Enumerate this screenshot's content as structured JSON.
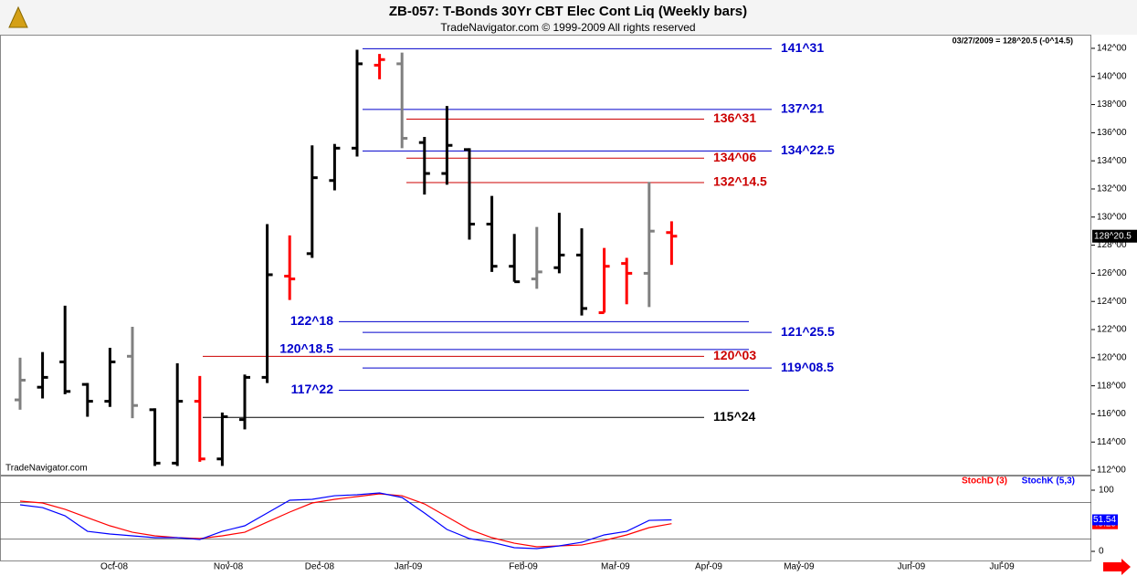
{
  "chart_data": {
    "type": "ohlc",
    "title": "ZB-057:  T-Bonds 30Yr CBT Elec Cont Liq  (Weekly bars)",
    "subtitle": "TradeNavigator.com © 1999-2009 All rights reserved",
    "info": "03/27/2009 = 128^20.5 (-0^14.5)",
    "watermark": "TradeNavigator.com",
    "ylim": [
      111.68,
      142.97
    ],
    "yticks": [
      {
        "value": 142,
        "label": "142^00"
      },
      {
        "value": 140,
        "label": "140^00"
      },
      {
        "value": 138,
        "label": "138^00"
      },
      {
        "value": 136,
        "label": "136^00"
      },
      {
        "value": 134,
        "label": "134^00"
      },
      {
        "value": 132,
        "label": "132^00"
      },
      {
        "value": 130,
        "label": "130^00"
      },
      {
        "value": 128,
        "label": "128^00"
      },
      {
        "value": 126,
        "label": "126^00"
      },
      {
        "value": 124,
        "label": "124^00"
      },
      {
        "value": 122,
        "label": "122^00"
      },
      {
        "value": 120,
        "label": "120^00"
      },
      {
        "value": 118,
        "label": "118^00"
      },
      {
        "value": 116,
        "label": "116^00"
      },
      {
        "value": 114,
        "label": "114^00"
      },
      {
        "value": 112,
        "label": "112^00"
      }
    ],
    "xlim": [
      -0.894,
      47.683
    ],
    "xticks": [
      {
        "value": 4.19,
        "label": "Oct-08"
      },
      {
        "value": 9.27,
        "label": "Nov-08"
      },
      {
        "value": 13.33,
        "label": "Dec-08"
      },
      {
        "value": 17.28,
        "label": "Jan-09"
      },
      {
        "value": 22.4,
        "label": "Feb-09"
      },
      {
        "value": 26.5,
        "label": "Mar-09"
      },
      {
        "value": 30.65,
        "label": "Apr-09"
      },
      {
        "value": 34.67,
        "label": "May-09"
      },
      {
        "value": 39.67,
        "label": "Jun-09"
      },
      {
        "value": 43.7,
        "label": "Jul-09"
      }
    ],
    "bars": [
      {
        "open": 117.0,
        "high": 120.0,
        "low": 116.3,
        "close": 118.4,
        "color": "#808080"
      },
      {
        "open": 117.9,
        "high": 120.4,
        "low": 117.1,
        "close": 118.6,
        "color": "#000000"
      },
      {
        "open": 119.7,
        "high": 123.7,
        "low": 117.4,
        "close": 117.6,
        "color": "#000000"
      },
      {
        "open": 118.1,
        "high": 118.2,
        "low": 115.8,
        "close": 116.9,
        "color": "#000000"
      },
      {
        "open": 116.9,
        "high": 120.7,
        "low": 116.5,
        "close": 119.7,
        "color": "#000000"
      },
      {
        "open": 120.1,
        "high": 122.2,
        "low": 115.7,
        "close": 116.6,
        "color": "#808080"
      },
      {
        "open": 116.3,
        "high": 116.4,
        "low": 112.3,
        "close": 112.5,
        "color": "#000000"
      },
      {
        "open": 112.5,
        "high": 119.6,
        "low": 112.3,
        "close": 116.9,
        "color": "#000000"
      },
      {
        "open": 116.9,
        "high": 118.7,
        "low": 112.6,
        "close": 112.8,
        "color": "#ff0000"
      },
      {
        "open": 112.8,
        "high": 116.1,
        "low": 112.3,
        "close": 115.8,
        "color": "#000000"
      },
      {
        "open": 115.6,
        "high": 118.8,
        "low": 114.9,
        "close": 118.6,
        "color": "#000000"
      },
      {
        "open": 118.6,
        "high": 129.5,
        "low": 118.2,
        "close": 125.9,
        "color": "#000000"
      },
      {
        "open": 125.8,
        "high": 128.7,
        "low": 124.1,
        "close": 125.6,
        "color": "#ff0000"
      },
      {
        "open": 127.4,
        "high": 135.1,
        "low": 127.1,
        "close": 132.8,
        "color": "#000000"
      },
      {
        "open": 132.6,
        "high": 135.2,
        "low": 131.9,
        "close": 134.9,
        "color": "#000000"
      },
      {
        "open": 134.9,
        "high": 141.9,
        "low": 134.3,
        "close": 140.9,
        "color": "#000000"
      },
      {
        "open": 140.8,
        "high": 141.6,
        "low": 139.8,
        "close": 141.2,
        "color": "#ff0000"
      },
      {
        "open": 140.9,
        "high": 141.7,
        "low": 134.9,
        "close": 135.6,
        "color": "#808080"
      },
      {
        "open": 135.3,
        "high": 135.7,
        "low": 131.6,
        "close": 133.1,
        "color": "#000000"
      },
      {
        "open": 133.1,
        "high": 137.9,
        "low": 132.3,
        "close": 135.1,
        "color": "#000000"
      },
      {
        "open": 134.8,
        "high": 134.9,
        "low": 128.4,
        "close": 129.5,
        "color": "#000000"
      },
      {
        "open": 129.5,
        "high": 131.5,
        "low": 126.1,
        "close": 126.5,
        "color": "#000000"
      },
      {
        "open": 126.5,
        "high": 128.8,
        "low": 125.4,
        "close": 125.4,
        "color": "#000000"
      },
      {
        "open": 125.6,
        "high": 129.3,
        "low": 124.9,
        "close": 126.1,
        "color": "#808080"
      },
      {
        "open": 126.4,
        "high": 130.3,
        "low": 126.0,
        "close": 127.3,
        "color": "#000000"
      },
      {
        "open": 127.3,
        "high": 129.2,
        "low": 123.0,
        "close": 123.5,
        "color": "#000000"
      },
      {
        "open": 123.2,
        "high": 127.8,
        "low": 123.2,
        "close": 126.5,
        "color": "#ff0000"
      },
      {
        "open": 126.7,
        "high": 127.1,
        "low": 123.8,
        "close": 126.0,
        "color": "#ff0000"
      },
      {
        "open": 126.0,
        "high": 132.5,
        "low": 123.6,
        "close": 129.0,
        "color": "#808080"
      },
      {
        "open": 128.9,
        "high": 129.7,
        "low": 126.6,
        "close": 128.640625,
        "color": "#ff0000"
      }
    ],
    "last_label": "128^20.5",
    "levels": {
      "values": [
        141.96875,
        137.65625,
        136.96875,
        134.703125,
        134.1875,
        132.453125,
        122.5625,
        121.796875,
        120.578125,
        120.09375,
        119.265625,
        117.6875,
        115.75
      ],
      "value_labels": [
        "141^31",
        "137^21",
        "136^31",
        "134^22.5",
        "134^06",
        "132^14.5",
        "122^18",
        "121^25.5",
        "120^18.5",
        "120^03",
        "119^08.5",
        "117^22",
        "115^24"
      ],
      "colors": [
        "#0000cc",
        "#0000cc",
        "#cc0000",
        "#0000cc",
        "#cc0000",
        "#cc0000",
        "#0000cc",
        "#0000cc",
        "#0000cc",
        "#cc0000",
        "#0000cc",
        "#0000cc",
        "#000000"
      ]
    },
    "stoch": {
      "ylim": [
        -16.4,
        122.4
      ],
      "yticks": [
        100,
        0
      ],
      "levels": [
        80,
        20
      ],
      "series": [
        {
          "name": "StochD (3)",
          "color": "#ff0000",
          "last_label": "45.25",
          "values": [
            82.1,
            79.1,
            68.7,
            55.2,
            41.8,
            31.3,
            25.4,
            22.4,
            20.9,
            25.4,
            31.3,
            47.8,
            64.2,
            79.1,
            85.1,
            89.6,
            94.0,
            91.0,
            77.6,
            56.7,
            35.8,
            22.4,
            13.4,
            7.5,
            9.0,
            10.4,
            17.9,
            26.9,
            38.8,
            45.25
          ]
        },
        {
          "name": "StochK (5,3)",
          "color": "#0000ff",
          "last_label": "51.54",
          "values": [
            76.1,
            71.6,
            58.2,
            32.8,
            28.4,
            25.4,
            22.4,
            22.4,
            19.4,
            32.8,
            41.8,
            62.7,
            83.6,
            85.1,
            91.0,
            92.5,
            95.5,
            88.1,
            62.7,
            35.8,
            20.9,
            14.9,
            6.0,
            4.5,
            9.0,
            14.9,
            26.9,
            32.8,
            50.7,
            51.54
          ]
        }
      ]
    }
  }
}
